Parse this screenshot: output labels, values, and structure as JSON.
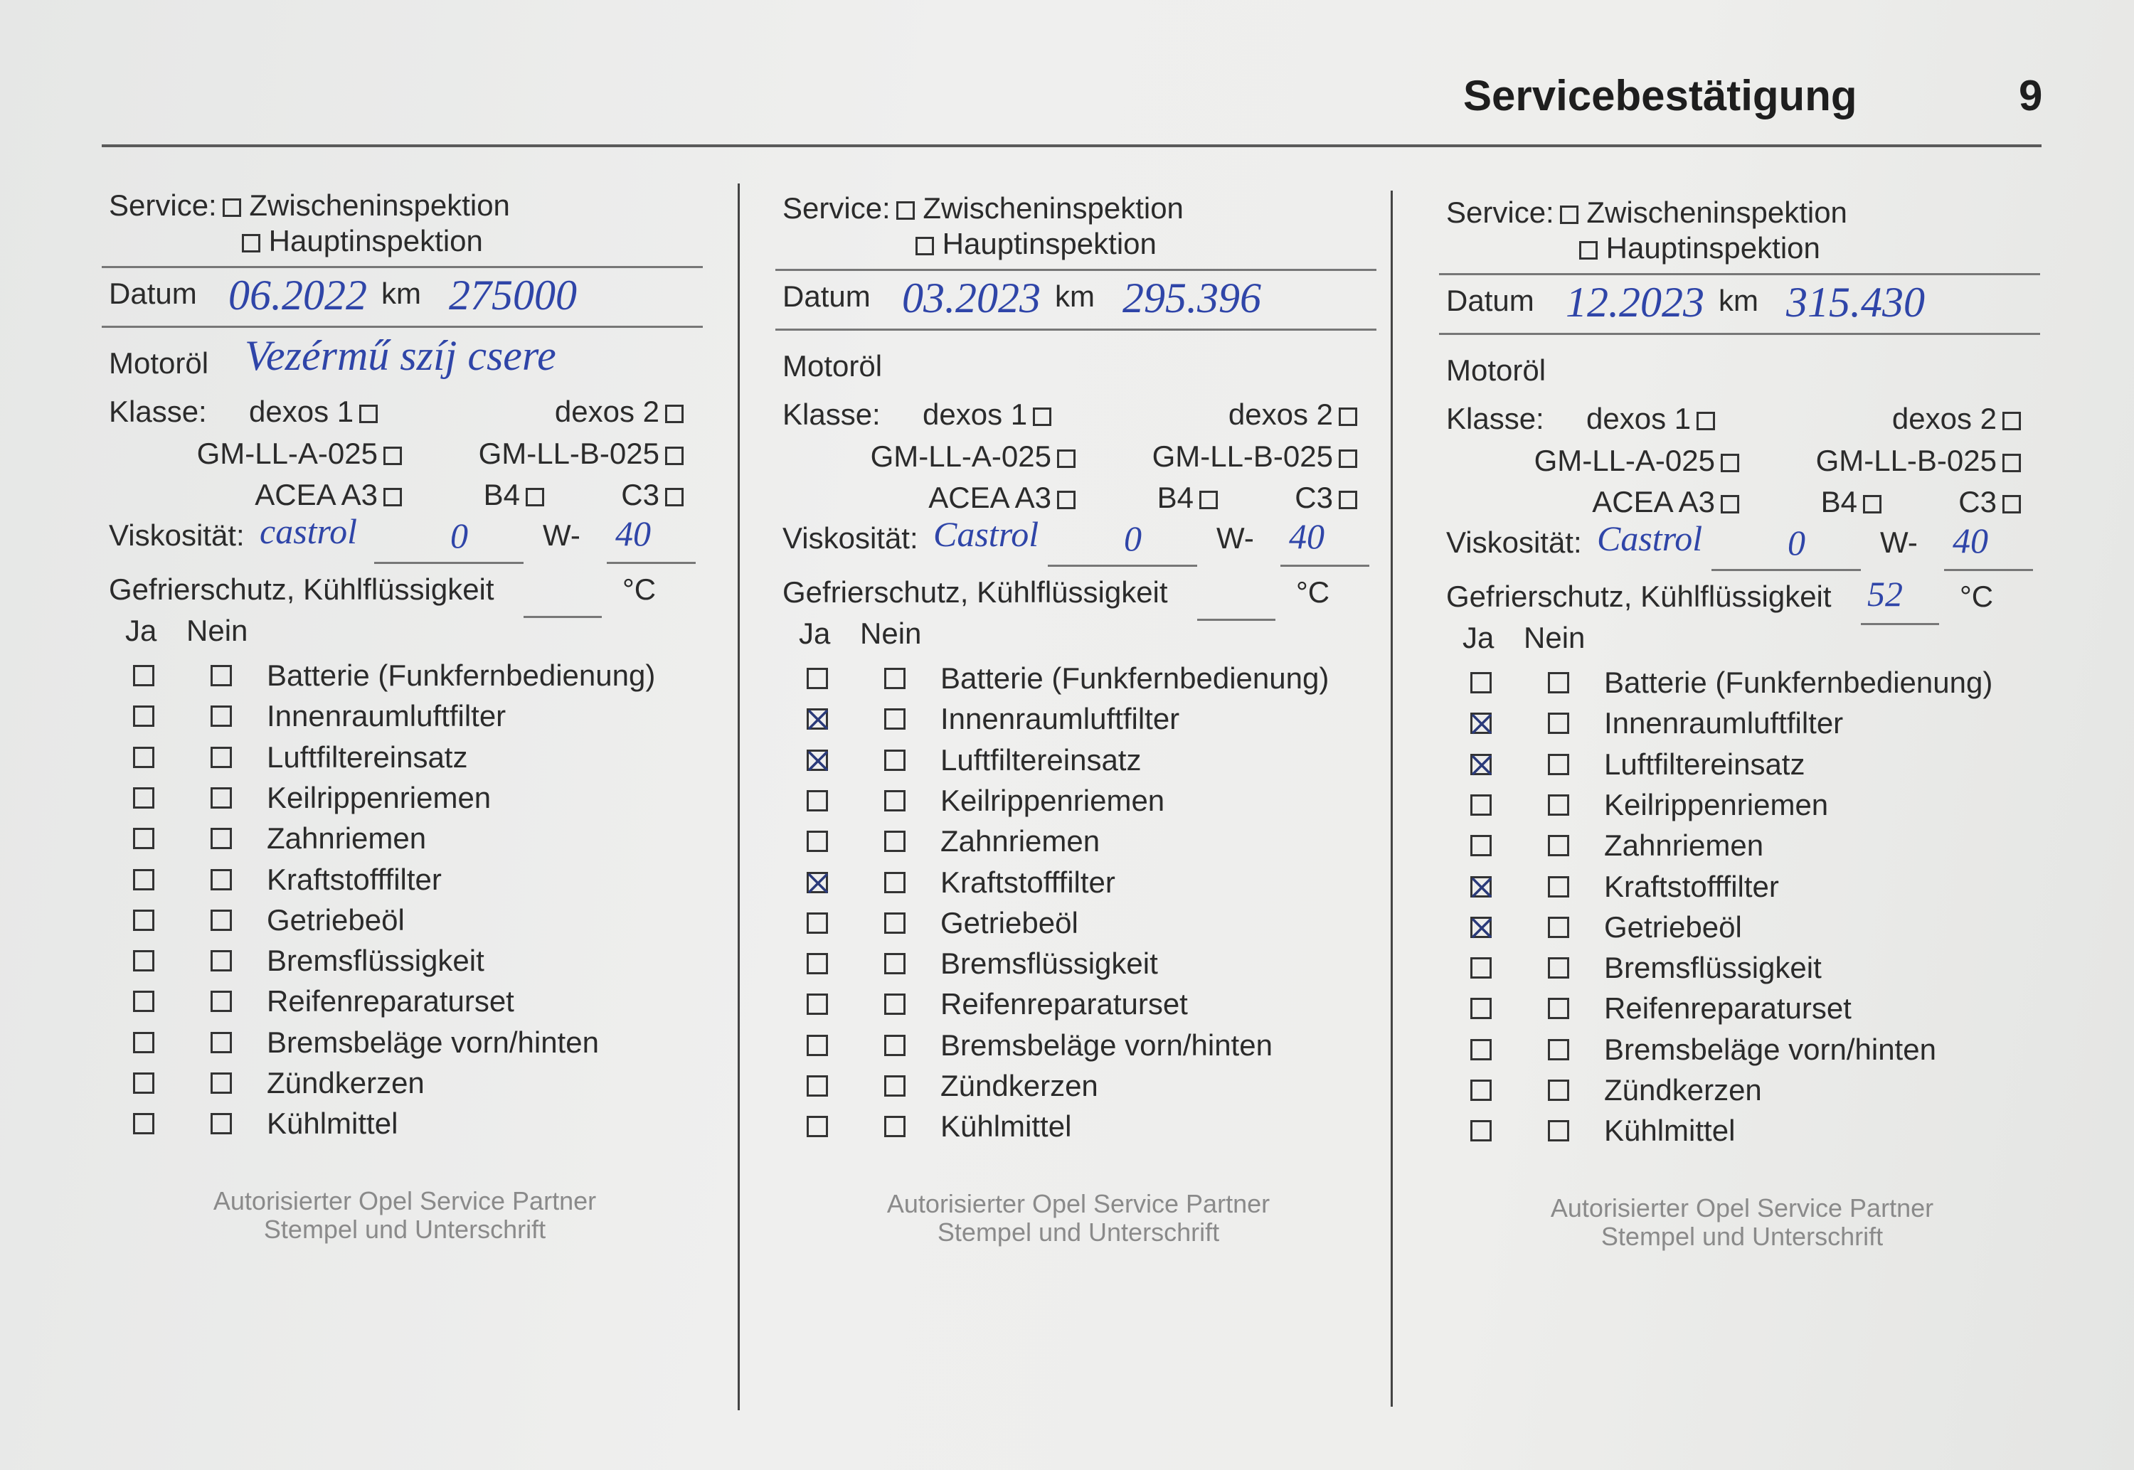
{
  "header": {
    "title": "Servicebestätigung",
    "page_number": "9"
  },
  "labels": {
    "service": "Service:",
    "zwischeninspektion": "Zwischeninspektion",
    "hauptinspektion": "Hauptinspektion",
    "datum": "Datum",
    "km": "km",
    "motoroel": "Motoröl",
    "klasse": "Klasse:",
    "dexos1": "dexos 1",
    "dexos2": "dexos  2",
    "gm_a": "GM-LL-A-025",
    "gm_b": "GM-LL-B-025",
    "acea": "ACEA A3",
    "b4": "B4",
    "c3": "C3",
    "viskositaet": "Viskosität:",
    "w": "W-",
    "gefrierschutz": "Gefrierschutz, Kühlflüssigkeit",
    "celsius": "°C",
    "ja": "Ja",
    "nein": "Nein",
    "footer_line1": "Autorisierter Opel Service Partner",
    "footer_line2": "Stempel und Unterschrift"
  },
  "items": [
    "Batterie (Funkfernbedienung)",
    "Innenraumluftfilter",
    "Luftfiltereinsatz",
    "Keilrippenriemen",
    "Zahnriemen",
    "Kraftstofffilter",
    "Getriebeöl",
    "Bremsflüssigkeit",
    "Reifenreparaturset",
    "Bremsbeläge vorn/hinten",
    "Zündkerzen",
    "Kühlmittel"
  ],
  "entries": [
    {
      "datum": "06.2022",
      "km": "275000",
      "motoroel": "Vezérmű szíj csere",
      "oil_brand": "castrol",
      "viscosity_w": "0",
      "viscosity_hot": "40",
      "frost_c": "",
      "ja_checked": []
    },
    {
      "datum": "03.2023",
      "km": "295.396",
      "motoroel": "",
      "oil_brand": "Castrol",
      "viscosity_w": "0",
      "viscosity_hot": "40",
      "frost_c": "",
      "ja_checked": [
        "Innenraumluftfilter",
        "Luftfiltereinsatz",
        "Kraftstofffilter"
      ]
    },
    {
      "datum": "12.2023",
      "km": "315.430",
      "motoroel": "",
      "oil_brand": "Castrol",
      "viscosity_w": "0",
      "viscosity_hot": "40",
      "frost_c": "52",
      "ja_checked": [
        "Innenraumluftfilter",
        "Luftfiltereinsatz",
        "Kraftstofffilter",
        "Getriebeöl"
      ]
    }
  ],
  "colors": {
    "ink": "#2f45a8",
    "print": "#2b2b2b"
  }
}
